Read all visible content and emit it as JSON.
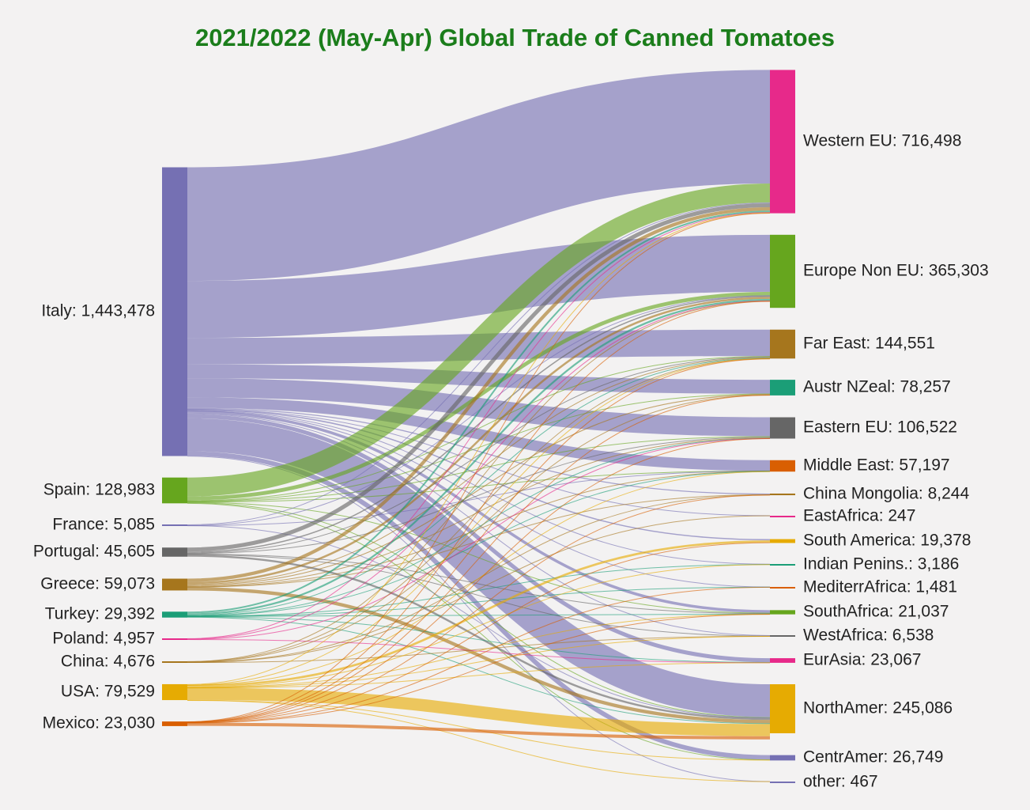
{
  "chart_data": {
    "type": "sankey",
    "title": "2021/2022 (May-Apr) Global Trade of Canned Tomatoes",
    "sources": [
      {
        "name": "Italy",
        "label": "Italy: 1,443,478",
        "value": 1443478,
        "color": "#7570b3"
      },
      {
        "name": "Spain",
        "label": "Spain: 128,983",
        "value": 128983,
        "color": "#66a61e"
      },
      {
        "name": "France",
        "label": "France: 5,085",
        "value": 5085,
        "color": "#7570b3"
      },
      {
        "name": "Portugal",
        "label": "Portugal: 45,605",
        "value": 45605,
        "color": "#666666"
      },
      {
        "name": "Greece",
        "label": "Greece: 59,073",
        "value": 59073,
        "color": "#a6761d"
      },
      {
        "name": "Turkey",
        "label": "Turkey: 29,392",
        "value": 29392,
        "color": "#1b9e77"
      },
      {
        "name": "Poland",
        "label": "Poland: 4,957",
        "value": 4957,
        "color": "#e7298a"
      },
      {
        "name": "China",
        "label": "China: 4,676",
        "value": 4676,
        "color": "#a6761d"
      },
      {
        "name": "USA",
        "label": "USA: 79,529",
        "value": 79529,
        "color": "#e6ab02"
      },
      {
        "name": "Mexico",
        "label": "Mexico: 23,030",
        "value": 23030,
        "color": "#d95f02"
      }
    ],
    "targets": [
      {
        "name": "Western EU",
        "label": "Western EU: 716,498",
        "value": 716498,
        "color": "#e7298a"
      },
      {
        "name": "Europe Non EU",
        "label": "Europe Non EU: 365,303",
        "value": 365303,
        "color": "#66a61e"
      },
      {
        "name": "Far East",
        "label": "Far East: 144,551",
        "value": 144551,
        "color": "#a6761d"
      },
      {
        "name": "Austr NZeal",
        "label": "Austr NZeal: 78,257",
        "value": 78257,
        "color": "#1b9e77"
      },
      {
        "name": "Eastern EU",
        "label": "Eastern EU: 106,522",
        "value": 106522,
        "color": "#666666"
      },
      {
        "name": "Middle East",
        "label": "Middle East: 57,197",
        "value": 57197,
        "color": "#d95f02"
      },
      {
        "name": "China Mongolia",
        "label": "China Mongolia: 8,244",
        "value": 8244,
        "color": "#a6761d"
      },
      {
        "name": "EastAfrica",
        "label": "EastAfrica: 247",
        "value": 247,
        "color": "#e7298a"
      },
      {
        "name": "South America",
        "label": "South America: 19,378",
        "value": 19378,
        "color": "#e6ab02"
      },
      {
        "name": "Indian Penins.",
        "label": "Indian Penins.: 3,186",
        "value": 3186,
        "color": "#1b9e77"
      },
      {
        "name": "MediterrAfrica",
        "label": "MediterrAfrica: 1,481",
        "value": 1481,
        "color": "#d95f02"
      },
      {
        "name": "SouthAfrica",
        "label": "SouthAfrica: 21,037",
        "value": 21037,
        "color": "#66a61e"
      },
      {
        "name": "WestAfrica",
        "label": "WestAfrica: 6,538",
        "value": 6538,
        "color": "#666666"
      },
      {
        "name": "EurAsia",
        "label": "EurAsia: 23,067",
        "value": 23067,
        "color": "#e7298a"
      },
      {
        "name": "NorthAmer",
        "label": "NorthAmer: 245,086",
        "value": 245086,
        "color": "#e6ab02"
      },
      {
        "name": "CentrAmer",
        "label": "CentrAmer: 26,749",
        "value": 26749,
        "color": "#7570b3"
      },
      {
        "name": "other",
        "label": "other: 467",
        "value": 467,
        "color": "#7570b3"
      }
    ],
    "flows": [
      {
        "source": "Italy",
        "target": "Western EU",
        "value": 568000
      },
      {
        "source": "Italy",
        "target": "Europe Non EU",
        "value": 285000
      },
      {
        "source": "Italy",
        "target": "Far East",
        "value": 132000
      },
      {
        "source": "Italy",
        "target": "Austr NZeal",
        "value": 70000
      },
      {
        "source": "Italy",
        "target": "Eastern EU",
        "value": 95000
      },
      {
        "source": "Italy",
        "target": "Middle East",
        "value": 53000
      },
      {
        "source": "Italy",
        "target": "China Mongolia",
        "value": 5000
      },
      {
        "source": "Italy",
        "target": "EastAfrica",
        "value": 150
      },
      {
        "source": "Italy",
        "target": "South America",
        "value": 6000
      },
      {
        "source": "Italy",
        "target": "Indian Penins.",
        "value": 2000
      },
      {
        "source": "Italy",
        "target": "MediterrAfrica",
        "value": 800
      },
      {
        "source": "Italy",
        "target": "SouthAfrica",
        "value": 14000
      },
      {
        "source": "Italy",
        "target": "WestAfrica",
        "value": 3500
      },
      {
        "source": "Italy",
        "target": "EurAsia",
        "value": 20000
      },
      {
        "source": "Italy",
        "target": "NorthAmer",
        "value": 165000
      },
      {
        "source": "Italy",
        "target": "CentrAmer",
        "value": 23000
      },
      {
        "source": "Italy",
        "target": "other",
        "value": 200
      },
      {
        "source": "Spain",
        "target": "Western EU",
        "value": 95000
      },
      {
        "source": "Spain",
        "target": "Europe Non EU",
        "value": 19000
      },
      {
        "source": "Spain",
        "target": "Far East",
        "value": 3000
      },
      {
        "source": "Spain",
        "target": "Austr NZeal",
        "value": 1500
      },
      {
        "source": "Spain",
        "target": "Eastern EU",
        "value": 2500
      },
      {
        "source": "Spain",
        "target": "Middle East",
        "value": 1200
      },
      {
        "source": "Spain",
        "target": "SouthAfrica",
        "value": 1800
      },
      {
        "source": "Spain",
        "target": "NorthAmer",
        "value": 3500
      },
      {
        "source": "Spain",
        "target": "CentrAmer",
        "value": 1483
      },
      {
        "source": "France",
        "target": "Western EU",
        "value": 3500
      },
      {
        "source": "France",
        "target": "Europe Non EU",
        "value": 800
      },
      {
        "source": "France",
        "target": "Middle East",
        "value": 400
      },
      {
        "source": "France",
        "target": "NorthAmer",
        "value": 385
      },
      {
        "source": "Portugal",
        "target": "Western EU",
        "value": 20000
      },
      {
        "source": "Portugal",
        "target": "Europe Non EU",
        "value": 6000
      },
      {
        "source": "Portugal",
        "target": "Far East",
        "value": 2000
      },
      {
        "source": "Portugal",
        "target": "Eastern EU",
        "value": 3000
      },
      {
        "source": "Portugal",
        "target": "SouthAfrica",
        "value": 3000
      },
      {
        "source": "Portugal",
        "target": "WestAfrica",
        "value": 2000
      },
      {
        "source": "Portugal",
        "target": "NorthAmer",
        "value": 9605
      },
      {
        "source": "Greece",
        "target": "Western EU",
        "value": 17000
      },
      {
        "source": "Greece",
        "target": "Europe Non EU",
        "value": 10000
      },
      {
        "source": "Greece",
        "target": "Far East",
        "value": 4000
      },
      {
        "source": "Greece",
        "target": "Austr NZeal",
        "value": 4500
      },
      {
        "source": "Greece",
        "target": "Eastern EU",
        "value": 4000
      },
      {
        "source": "Greece",
        "target": "China Mongolia",
        "value": 1500
      },
      {
        "source": "Greece",
        "target": "Middle East",
        "value": 1000
      },
      {
        "source": "Greece",
        "target": "NorthAmer",
        "value": 17073
      },
      {
        "source": "Turkey",
        "target": "Western EU",
        "value": 8000
      },
      {
        "source": "Turkey",
        "target": "Europe Non EU",
        "value": 9000
      },
      {
        "source": "Turkey",
        "target": "Far East",
        "value": 2000
      },
      {
        "source": "Turkey",
        "target": "Eastern EU",
        "value": 1000
      },
      {
        "source": "Turkey",
        "target": "Middle East",
        "value": 1400
      },
      {
        "source": "Turkey",
        "target": "Indian Penins.",
        "value": 900
      },
      {
        "source": "Turkey",
        "target": "MediterrAfrica",
        "value": 400
      },
      {
        "source": "Turkey",
        "target": "SouthAfrica",
        "value": 1000
      },
      {
        "source": "Turkey",
        "target": "EurAsia",
        "value": 2500
      },
      {
        "source": "Turkey",
        "target": "NorthAmer",
        "value": 3192
      },
      {
        "source": "Poland",
        "target": "Western EU",
        "value": 2000
      },
      {
        "source": "Poland",
        "target": "Europe Non EU",
        "value": 1500
      },
      {
        "source": "Poland",
        "target": "Eastern EU",
        "value": 1000
      },
      {
        "source": "Poland",
        "target": "EurAsia",
        "value": 457
      },
      {
        "source": "China",
        "target": "Europe Non EU",
        "value": 800
      },
      {
        "source": "China",
        "target": "Far East",
        "value": 1500
      },
      {
        "source": "China",
        "target": "Austr NZeal",
        "value": 1200
      },
      {
        "source": "China",
        "target": "China Mongolia",
        "value": 900
      },
      {
        "source": "China",
        "target": "EastAfrica",
        "value": 97
      },
      {
        "source": "China",
        "target": "WestAfrica",
        "value": 179
      },
      {
        "source": "USA",
        "target": "Western EU",
        "value": 2500
      },
      {
        "source": "USA",
        "target": "Far East",
        "value": 1500
      },
      {
        "source": "USA",
        "target": "Middle East",
        "value": 197
      },
      {
        "source": "USA",
        "target": "South America",
        "value": 11000
      },
      {
        "source": "USA",
        "target": "Indian Penins.",
        "value": 286
      },
      {
        "source": "USA",
        "target": "SouthAfrica",
        "value": 900
      },
      {
        "source": "USA",
        "target": "WestAfrica",
        "value": 859
      },
      {
        "source": "USA",
        "target": "EurAsia",
        "value": 110
      },
      {
        "source": "USA",
        "target": "NorthAmer",
        "value": 61000
      },
      {
        "source": "USA",
        "target": "CentrAmer",
        "value": 1266
      },
      {
        "source": "USA",
        "target": "other",
        "value": 267
      },
      {
        "source": "Mexico",
        "target": "Western EU",
        "value": 498
      },
      {
        "source": "Mexico",
        "target": "Europe Non EU",
        "value": 1203
      },
      {
        "source": "Mexico",
        "target": "Far East",
        "value": 551
      },
      {
        "source": "Mexico",
        "target": "Austr NZeal",
        "value": 57
      },
      {
        "source": "Mexico",
        "target": "Eastern EU",
        "value": 22
      },
      {
        "source": "Mexico",
        "target": "China Mongolia",
        "value": 844
      },
      {
        "source": "Mexico",
        "target": "South America",
        "value": 2378
      },
      {
        "source": "Mexico",
        "target": "MediterrAfrica",
        "value": 281
      },
      {
        "source": "Mexico",
        "target": "SouthAfrica",
        "value": 337
      },
      {
        "source": "Mexico",
        "target": "NorthAmer",
        "value": 15859
      }
    ]
  }
}
